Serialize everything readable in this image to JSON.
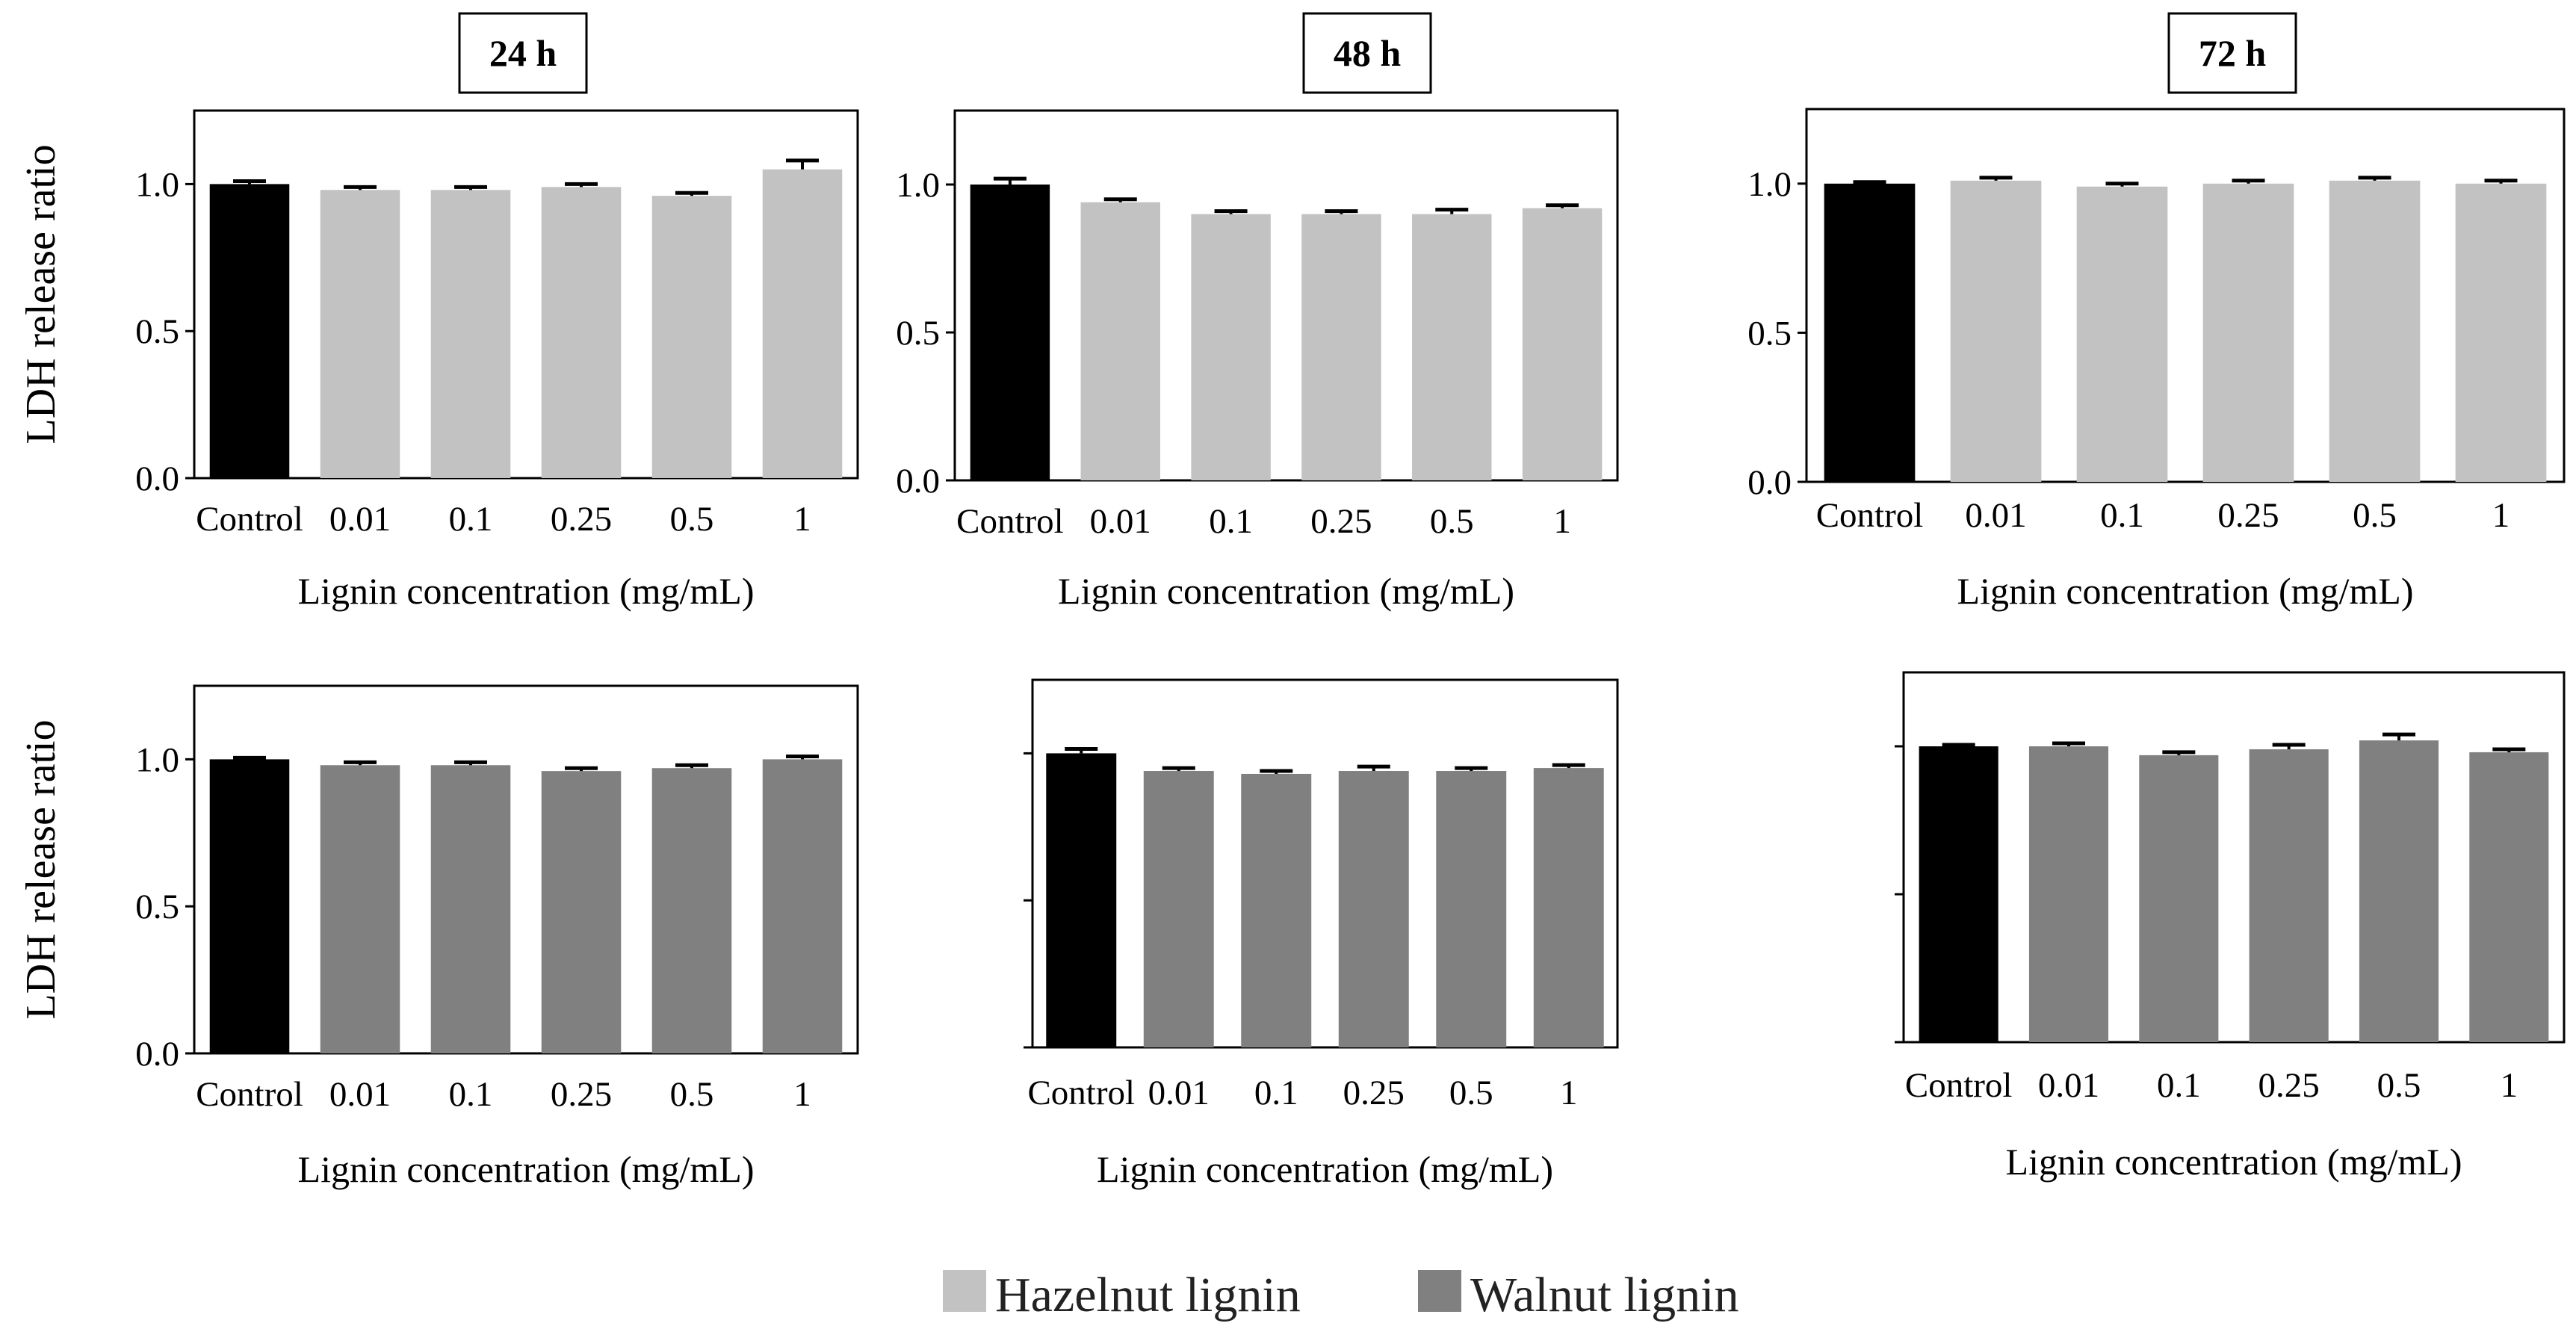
{
  "chart_data": [
    {
      "type": "bar",
      "panel_label": "24 h",
      "row": "hazelnut",
      "ylabel": "LDH release ratio",
      "xlabel": "Lignin concentration (mg/mL)",
      "categories": [
        "Control",
        "0.01",
        "0.1",
        "0.25",
        "0.5",
        "1"
      ],
      "values": [
        1.0,
        0.98,
        0.98,
        0.99,
        0.96,
        1.05
      ],
      "errors": [
        0.01,
        0.01,
        0.01,
        0.01,
        0.01,
        0.03
      ],
      "bar_colors": [
        "#000000",
        "#c2c2c2",
        "#c2c2c2",
        "#c2c2c2",
        "#c2c2c2",
        "#c2c2c2"
      ],
      "ylim": [
        0,
        1.25
      ],
      "yticks": [
        "0.0",
        "0.5",
        "1.0"
      ]
    },
    {
      "type": "bar",
      "panel_label": "48 h",
      "row": "hazelnut",
      "ylabel": "",
      "xlabel": "Lignin concentration (mg/mL)",
      "categories": [
        "Control",
        "0.01",
        "0.1",
        "0.25",
        "0.5",
        "1"
      ],
      "values": [
        1.0,
        0.94,
        0.9,
        0.9,
        0.9,
        0.92
      ],
      "errors": [
        0.02,
        0.01,
        0.01,
        0.01,
        0.015,
        0.01
      ],
      "bar_colors": [
        "#000000",
        "#c2c2c2",
        "#c2c2c2",
        "#c2c2c2",
        "#c2c2c2",
        "#c2c2c2"
      ],
      "ylim": [
        0,
        1.25
      ],
      "yticks": [
        "0.0",
        "0.5",
        "1.0"
      ]
    },
    {
      "type": "bar",
      "panel_label": "72 h",
      "row": "hazelnut",
      "ylabel": "",
      "xlabel": "Lignin concentration (mg/mL)",
      "categories": [
        "Control",
        "0.01",
        "0.1",
        "0.25",
        "0.5",
        "1"
      ],
      "values": [
        1.0,
        1.01,
        0.99,
        1.0,
        1.01,
        1.0
      ],
      "errors": [
        0.005,
        0.01,
        0.01,
        0.01,
        0.01,
        0.01
      ],
      "bar_colors": [
        "#000000",
        "#c2c2c2",
        "#c2c2c2",
        "#c2c2c2",
        "#c2c2c2",
        "#c2c2c2"
      ],
      "ylim": [
        0,
        1.25
      ],
      "yticks": [
        "0.0",
        "0.5",
        "1.0"
      ]
    },
    {
      "type": "bar",
      "panel_label": "",
      "row": "walnut",
      "ylabel": "LDH release ratio",
      "xlabel": "Lignin concentration (mg/mL)",
      "categories": [
        "Control",
        "0.01",
        "0.1",
        "0.25",
        "0.5",
        "1"
      ],
      "values": [
        1.0,
        0.98,
        0.98,
        0.96,
        0.97,
        1.0
      ],
      "errors": [
        0.005,
        0.01,
        0.01,
        0.01,
        0.01,
        0.01
      ],
      "bar_colors": [
        "#000000",
        "#808080",
        "#808080",
        "#808080",
        "#808080",
        "#808080"
      ],
      "ylim": [
        0,
        1.25
      ],
      "yticks": [
        "0.0",
        "0.5",
        "1.0"
      ]
    },
    {
      "type": "bar",
      "panel_label": "",
      "row": "walnut",
      "ylabel": "",
      "xlabel": "Lignin concentration (mg/mL)",
      "categories": [
        "Control",
        "0.01",
        "0.1",
        "0.25",
        "0.5",
        "1"
      ],
      "values": [
        1.0,
        0.94,
        0.93,
        0.94,
        0.94,
        0.95
      ],
      "errors": [
        0.015,
        0.01,
        0.01,
        0.015,
        0.01,
        0.01
      ],
      "bar_colors": [
        "#000000",
        "#808080",
        "#808080",
        "#808080",
        "#808080",
        "#808080"
      ],
      "ylim": [
        0,
        1.25
      ],
      "yticks": [
        "",
        "",
        ""
      ]
    },
    {
      "type": "bar",
      "panel_label": "",
      "row": "walnut",
      "ylabel": "",
      "xlabel": "Lignin concentration (mg/mL)",
      "categories": [
        "Control",
        "0.01",
        "0.1",
        "0.25",
        "0.5",
        "1"
      ],
      "values": [
        1.0,
        1.0,
        0.97,
        0.99,
        1.02,
        0.98
      ],
      "errors": [
        0.005,
        0.01,
        0.01,
        0.015,
        0.02,
        0.01
      ],
      "bar_colors": [
        "#000000",
        "#808080",
        "#808080",
        "#808080",
        "#808080",
        "#808080"
      ],
      "ylim": [
        0,
        1.25
      ],
      "yticks": [
        "",
        "",
        ""
      ]
    }
  ],
  "legend": {
    "items": [
      {
        "label": "Hazelnut lignin",
        "color": "#c2c2c2"
      },
      {
        "label": "Walnut lignin",
        "color": "#808080"
      }
    ]
  }
}
